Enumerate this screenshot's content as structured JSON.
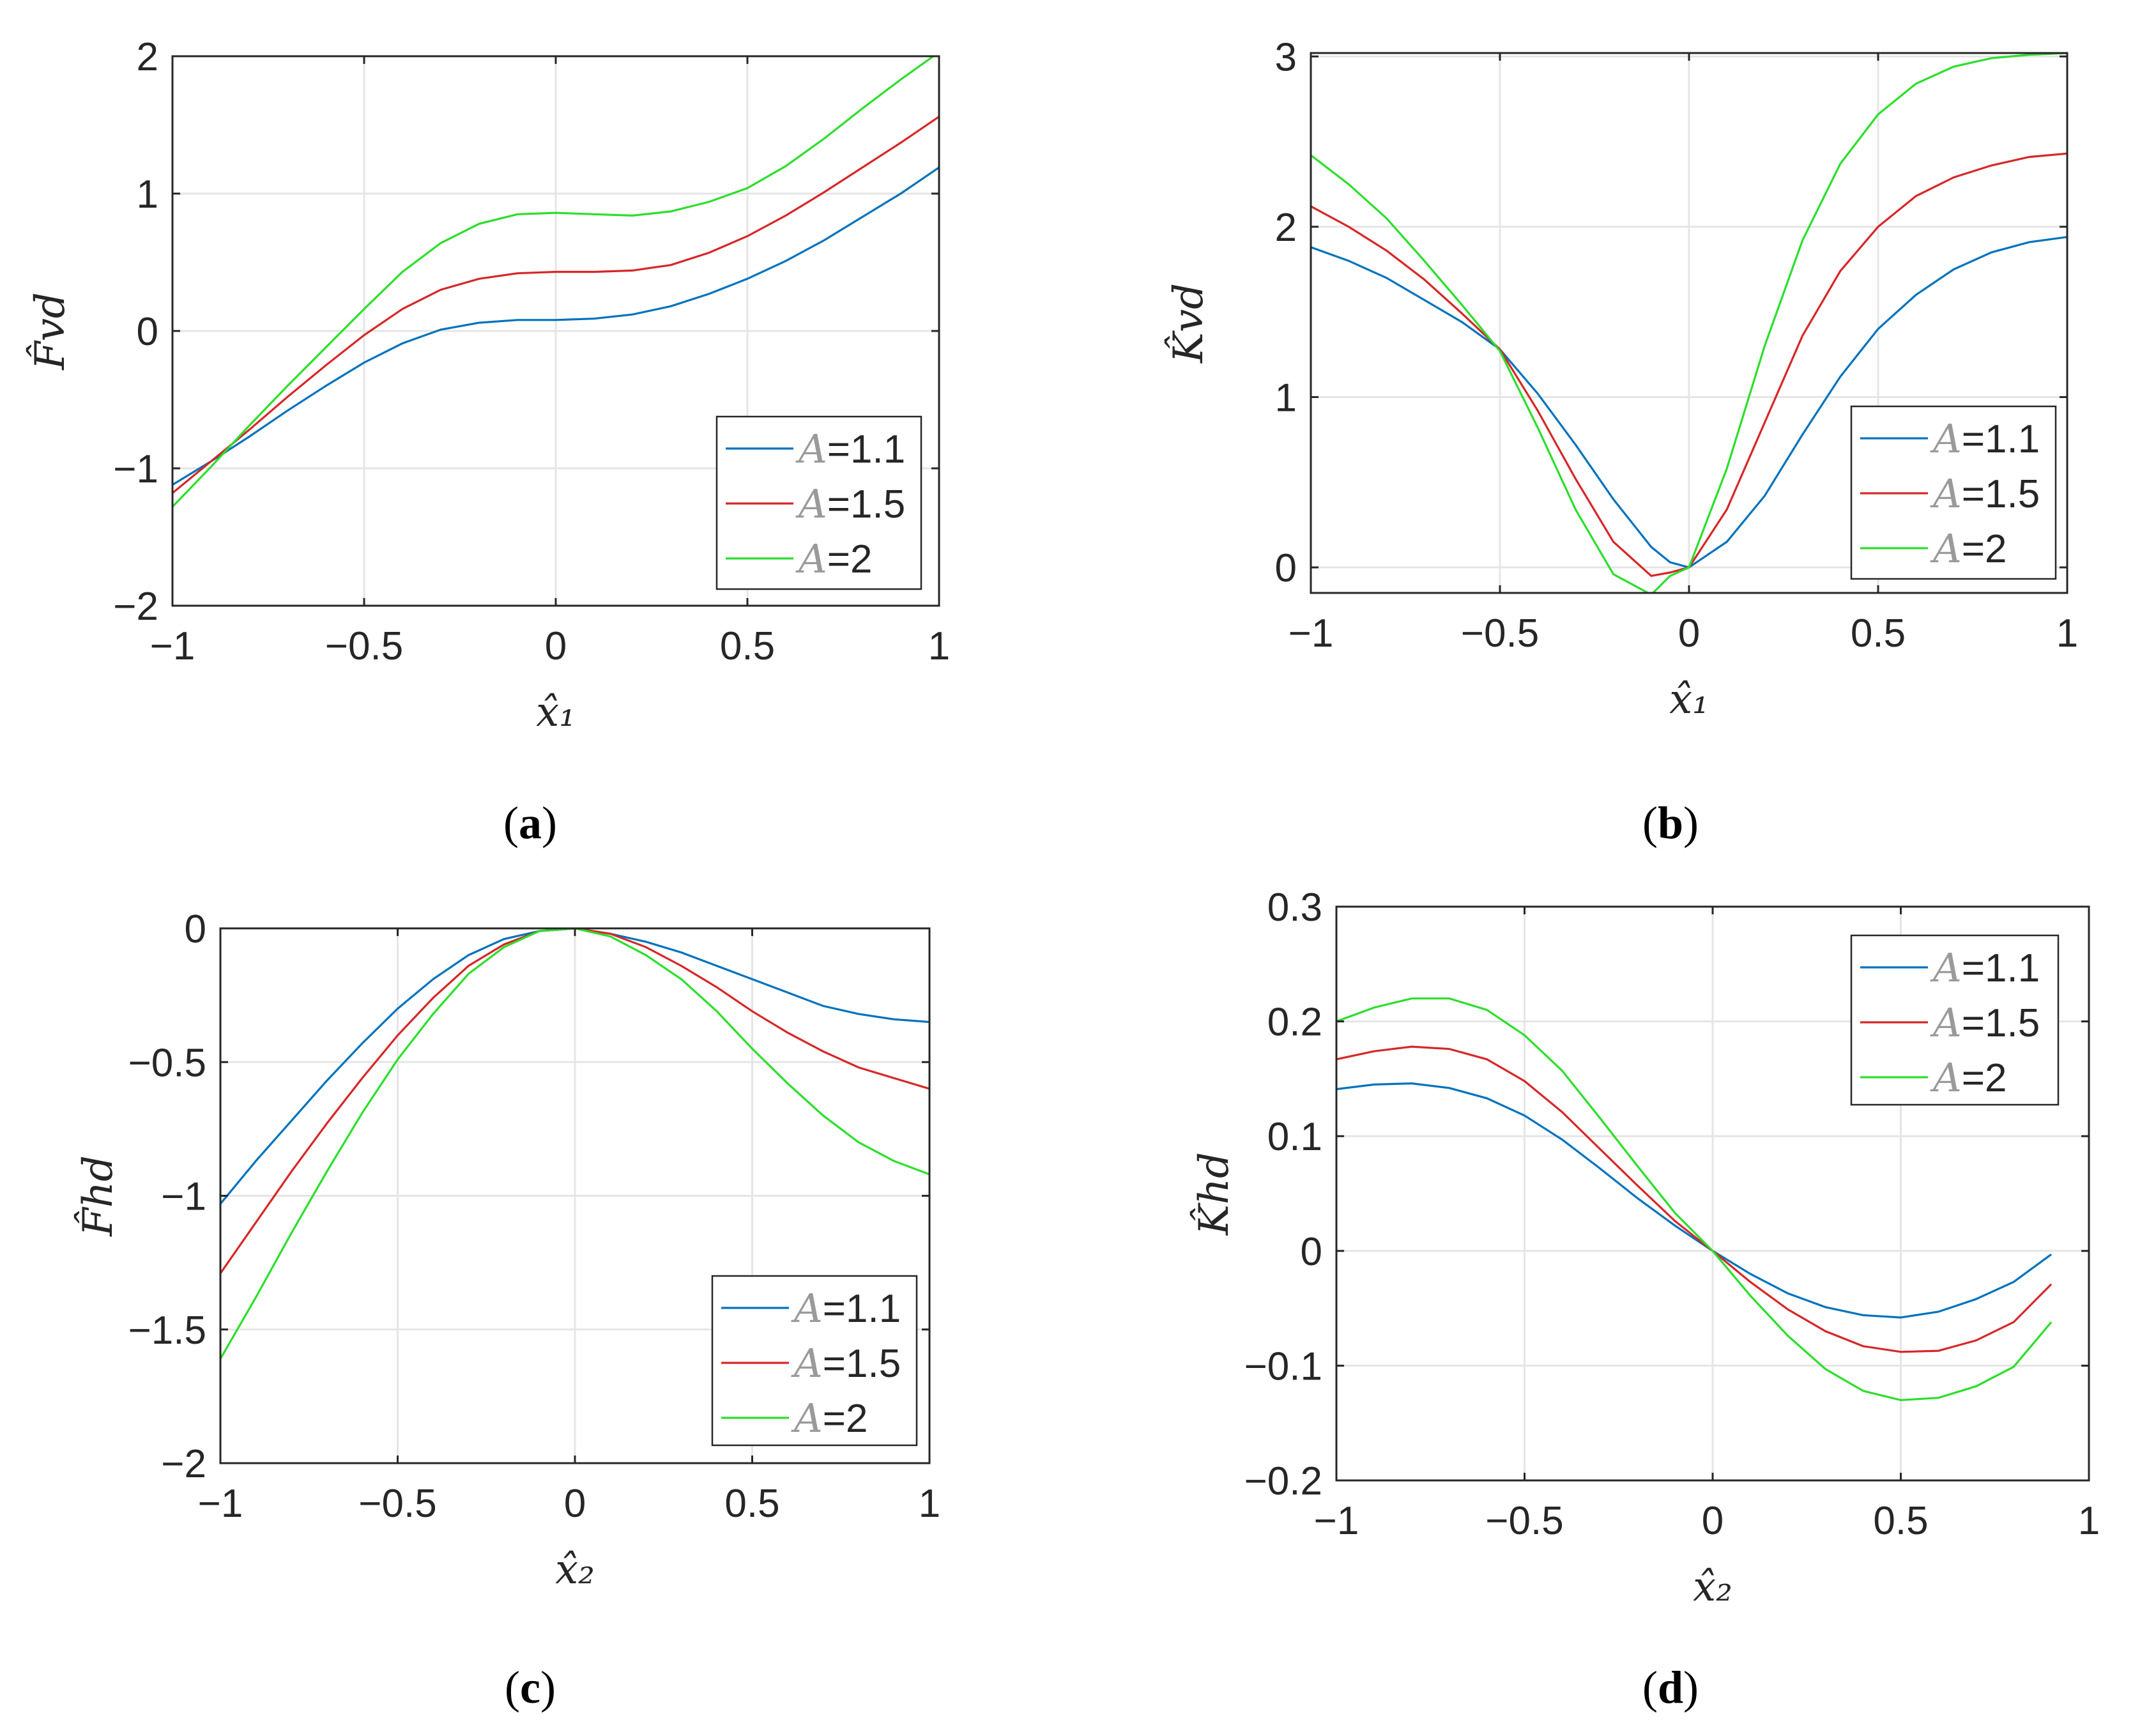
{
  "colors": {
    "A11": "#0072BD",
    "A15": "#D62728",
    "A2": "#2CDE2C",
    "grid": "#e5e5e5",
    "axis": "#262626"
  },
  "chart_data": [
    {
      "type": "line",
      "panel": "(a)",
      "panel_letter": "a",
      "xlabel": "x̂₁",
      "ylabel": "F̂vd",
      "xlim": [
        -1,
        1
      ],
      "ylim": [
        -2,
        2
      ],
      "xticks": [
        -1,
        -0.5,
        0,
        0.5,
        1
      ],
      "xtick_labels": [
        "−1",
        "−0.5",
        "0",
        "0.5",
        "1"
      ],
      "yticks": [
        -2,
        -1,
        0,
        1,
        2
      ],
      "ytick_labels": [
        "−2",
        "−1",
        "0",
        "1",
        "2"
      ],
      "legend_position": "bottom-right",
      "x": [
        -1,
        -0.9,
        -0.8,
        -0.7,
        -0.6,
        -0.5,
        -0.4,
        -0.3,
        -0.2,
        -0.1,
        0,
        0.1,
        0.2,
        0.3,
        0.4,
        0.5,
        0.6,
        0.7,
        0.8,
        0.9,
        1
      ],
      "series": [
        {
          "name": "A=1.1",
          "label": "=1.1",
          "color_key": "A11",
          "values": [
            -1.12,
            -0.95,
            -0.77,
            -0.58,
            -0.4,
            -0.23,
            -0.09,
            0.01,
            0.06,
            0.08,
            0.08,
            0.09,
            0.12,
            0.18,
            0.27,
            0.38,
            0.51,
            0.66,
            0.83,
            1.0,
            1.19
          ]
        },
        {
          "name": "A=1.5",
          "label": "=1.5",
          "color_key": "A15",
          "values": [
            -1.18,
            -0.95,
            -0.72,
            -0.48,
            -0.25,
            -0.03,
            0.16,
            0.3,
            0.38,
            0.42,
            0.43,
            0.43,
            0.44,
            0.48,
            0.57,
            0.69,
            0.84,
            1.01,
            1.19,
            1.37,
            1.56
          ]
        },
        {
          "name": "A=2",
          "label": "=2",
          "color_key": "A2",
          "values": [
            -1.28,
            -0.99,
            -0.69,
            -0.4,
            -0.12,
            0.16,
            0.43,
            0.64,
            0.78,
            0.85,
            0.86,
            0.85,
            0.84,
            0.87,
            0.94,
            1.04,
            1.2,
            1.4,
            1.62,
            1.83,
            2.03
          ]
        }
      ]
    },
    {
      "type": "line",
      "panel": "(b)",
      "panel_letter": "b",
      "xlabel": "x̂₁",
      "ylabel": "K̂vd",
      "xlim": [
        -1,
        1
      ],
      "ylim": [
        -0.15,
        3.02
      ],
      "xticks": [
        -1,
        -0.5,
        0,
        0.5,
        1
      ],
      "xtick_labels": [
        "−1",
        "−0.5",
        "0",
        "0.5",
        "1"
      ],
      "yticks": [
        0,
        1,
        2,
        3
      ],
      "ytick_labels": [
        "0",
        "1",
        "2",
        "3"
      ],
      "legend_position": "bottom-right",
      "x": [
        -1,
        -0.9,
        -0.8,
        -0.7,
        -0.6,
        -0.5,
        -0.4,
        -0.3,
        -0.2,
        -0.1,
        -0.05,
        0,
        0.1,
        0.2,
        0.3,
        0.4,
        0.5,
        0.6,
        0.7,
        0.8,
        0.9,
        1
      ],
      "series": [
        {
          "name": "A=1.1",
          "label": "=1.1",
          "color_key": "A11",
          "values": [
            1.88,
            1.8,
            1.7,
            1.57,
            1.44,
            1.28,
            1.02,
            0.72,
            0.4,
            0.12,
            0.03,
            0.0,
            0.15,
            0.42,
            0.78,
            1.12,
            1.4,
            1.6,
            1.75,
            1.85,
            1.91,
            1.94
          ]
        },
        {
          "name": "A=1.5",
          "label": "=1.5",
          "color_key": "A15",
          "values": [
            2.12,
            2.0,
            1.86,
            1.69,
            1.49,
            1.28,
            0.92,
            0.52,
            0.15,
            -0.05,
            -0.03,
            0.0,
            0.34,
            0.85,
            1.36,
            1.74,
            2.0,
            2.18,
            2.29,
            2.36,
            2.41,
            2.43
          ]
        },
        {
          "name": "A=2",
          "label": "=2",
          "color_key": "A2",
          "values": [
            2.42,
            2.25,
            2.05,
            1.8,
            1.54,
            1.27,
            0.82,
            0.34,
            -0.04,
            -0.16,
            -0.05,
            0.0,
            0.58,
            1.3,
            1.92,
            2.37,
            2.66,
            2.84,
            2.94,
            2.99,
            3.01,
            3.02
          ]
        }
      ]
    },
    {
      "type": "line",
      "panel": "(c)",
      "panel_letter": "c",
      "xlabel": "x̂₂",
      "ylabel": "F̂hd",
      "xlim": [
        -1,
        1
      ],
      "ylim": [
        -2,
        0
      ],
      "xticks": [
        -1,
        -0.5,
        0,
        0.5,
        1
      ],
      "xtick_labels": [
        "−1",
        "−0.5",
        "0",
        "0.5",
        "1"
      ],
      "yticks": [
        -2,
        -1.5,
        -1,
        -0.5,
        0
      ],
      "ytick_labels": [
        "−2",
        "−1.5",
        "−1",
        "−0.5",
        "0"
      ],
      "legend_position": "bottom-right",
      "x": [
        -1,
        -0.9,
        -0.8,
        -0.7,
        -0.6,
        -0.5,
        -0.4,
        -0.3,
        -0.2,
        -0.1,
        0,
        0.1,
        0.2,
        0.3,
        0.4,
        0.5,
        0.6,
        0.7,
        0.8,
        0.9,
        1
      ],
      "series": [
        {
          "name": "A=1.1",
          "label": "=1.1",
          "color_key": "A11",
          "values": [
            -1.03,
            -0.87,
            -0.72,
            -0.57,
            -0.43,
            -0.3,
            -0.19,
            -0.1,
            -0.04,
            -0.01,
            0.0,
            -0.02,
            -0.05,
            -0.09,
            -0.14,
            -0.19,
            -0.24,
            -0.29,
            -0.32,
            -0.34,
            -0.35
          ]
        },
        {
          "name": "A=1.5",
          "label": "=1.5",
          "color_key": "A15",
          "values": [
            -1.29,
            -1.1,
            -0.91,
            -0.73,
            -0.56,
            -0.4,
            -0.26,
            -0.14,
            -0.06,
            -0.01,
            0.0,
            -0.02,
            -0.07,
            -0.14,
            -0.22,
            -0.31,
            -0.39,
            -0.46,
            -0.52,
            -0.56,
            -0.6
          ]
        },
        {
          "name": "A=2",
          "label": "=2",
          "color_key": "A2",
          "values": [
            -1.61,
            -1.38,
            -1.14,
            -0.91,
            -0.69,
            -0.49,
            -0.32,
            -0.17,
            -0.07,
            -0.01,
            0.0,
            -0.03,
            -0.1,
            -0.19,
            -0.31,
            -0.45,
            -0.58,
            -0.7,
            -0.8,
            -0.87,
            -0.92
          ]
        }
      ]
    },
    {
      "type": "line",
      "panel": "(d)",
      "panel_letter": "d",
      "xlabel": "x̂₂",
      "ylabel": "K̂hd",
      "xlim": [
        -1,
        1
      ],
      "ylim": [
        -0.2,
        0.3
      ],
      "xticks": [
        -1,
        -0.5,
        0,
        0.5,
        1
      ],
      "xtick_labels": [
        "−1",
        "−0.5",
        "0",
        "0.5",
        "1"
      ],
      "yticks": [
        -0.2,
        -0.1,
        0,
        0.1,
        0.2,
        0.3
      ],
      "ytick_labels": [
        "−0.2",
        "−0.1",
        "0",
        "0.1",
        "0.2",
        "0.3"
      ],
      "legend_position": "top-right",
      "x": [
        -1,
        -0.9,
        -0.8,
        -0.7,
        -0.6,
        -0.5,
        -0.4,
        -0.3,
        -0.2,
        -0.1,
        0,
        0.1,
        0.2,
        0.3,
        0.4,
        0.5,
        0.6,
        0.7,
        0.8,
        0.9
      ],
      "series": [
        {
          "name": "A=1.1",
          "label": "=1.1",
          "color_key": "A11",
          "values": [
            0.141,
            0.145,
            0.146,
            0.142,
            0.133,
            0.118,
            0.097,
            0.072,
            0.046,
            0.022,
            0.0,
            -0.02,
            -0.037,
            -0.049,
            -0.056,
            -0.058,
            -0.053,
            -0.042,
            -0.027,
            -0.003
          ]
        },
        {
          "name": "A=1.5",
          "label": "=1.5",
          "color_key": "A15",
          "values": [
            0.167,
            0.174,
            0.178,
            0.176,
            0.167,
            0.148,
            0.121,
            0.089,
            0.057,
            0.026,
            0.0,
            -0.027,
            -0.051,
            -0.07,
            -0.083,
            -0.088,
            -0.087,
            -0.078,
            -0.062,
            -0.029
          ]
        },
        {
          "name": "A=2",
          "label": "=2",
          "color_key": "A2",
          "values": [
            0.2,
            0.212,
            0.22,
            0.22,
            0.21,
            0.188,
            0.157,
            0.116,
            0.074,
            0.033,
            0.0,
            -0.039,
            -0.074,
            -0.103,
            -0.122,
            -0.13,
            -0.128,
            -0.118,
            -0.101,
            -0.062
          ]
        }
      ]
    }
  ]
}
